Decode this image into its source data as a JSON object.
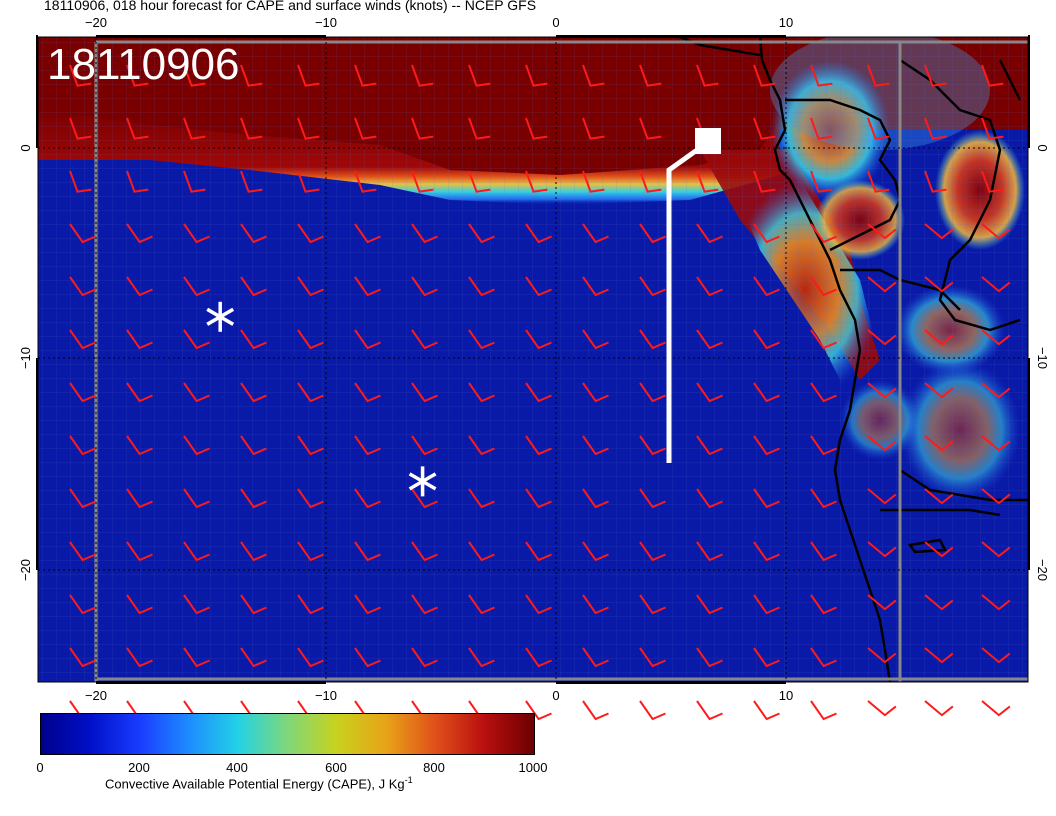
{
  "title": "18110906, 018 hour forecast for CAPE and surface winds (knots) -- NCEP GFS",
  "date_stamp": "18110906",
  "map": {
    "lon_range": [
      -22.5,
      20.5
    ],
    "lat_range": [
      -24.5,
      5
    ],
    "lon_ticks": [
      "−20",
      "−10",
      "0",
      "10"
    ],
    "lat_ticks": [
      "0",
      "−10",
      "−20"
    ],
    "colors": {
      "ocean_low_cape": "#0a1aa8",
      "high_cape": "#7a0000",
      "wind_barb": "#ff1a1a",
      "flight_track": "#ffffff",
      "coastline": "#000000"
    }
  },
  "colorbar": {
    "title": "Convective Available Potential Energy (CAPE), J Kg",
    "title_superscript": "-1",
    "tick_labels": [
      "0",
      "200",
      "400",
      "600",
      "800",
      "1000"
    ],
    "range": [
      0,
      1000
    ]
  },
  "markers": [
    {
      "symbol": "star-icon",
      "lon": -14.6,
      "lat": -8
    },
    {
      "symbol": "star-icon",
      "lon": -5.8,
      "lat": -15.8
    }
  ]
}
